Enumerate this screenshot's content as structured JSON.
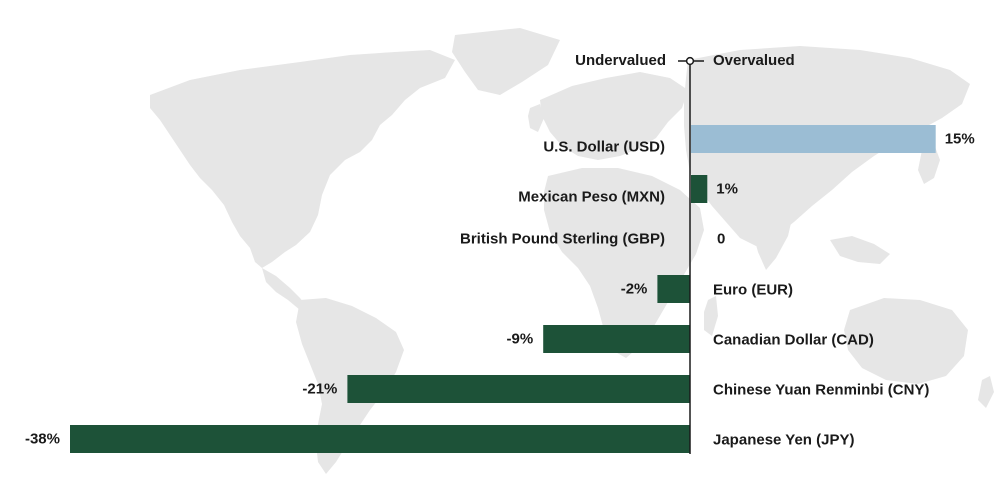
{
  "chart_data": {
    "type": "bar",
    "orientation": "horizontal",
    "header_left": "Undervalued",
    "header_right": "Overvalued",
    "categories": [
      "U.S. Dollar (USD)",
      "Mexican Peso (MXN)",
      "British Pound Sterling (GBP)",
      "Euro (EUR)",
      "Canadian Dollar (CAD)",
      "Chinese Yuan Renminbi (CNY)",
      "Japanese Yen (JPY)"
    ],
    "values": [
      15,
      1,
      0,
      -2,
      -9,
      -21,
      -38
    ],
    "value_labels": [
      "15%",
      "1%",
      "0",
      "-2%",
      "-9%",
      "-21%",
      "-38%"
    ],
    "xlim": [
      -38,
      15
    ],
    "bar_colors": [
      "#9bbdd4",
      "#1d5238",
      "#1d5238",
      "#1d5238",
      "#1d5238",
      "#1d5238",
      "#1d5238"
    ],
    "background": "world map (light gray)",
    "grid": false,
    "legend": "none"
  },
  "colors": {
    "positive_highlight": "#9bbdd4",
    "bar": "#1d5238",
    "map": "#e6e6e6",
    "axis": "#1a1a1a",
    "text": "#1a1a1a"
  }
}
